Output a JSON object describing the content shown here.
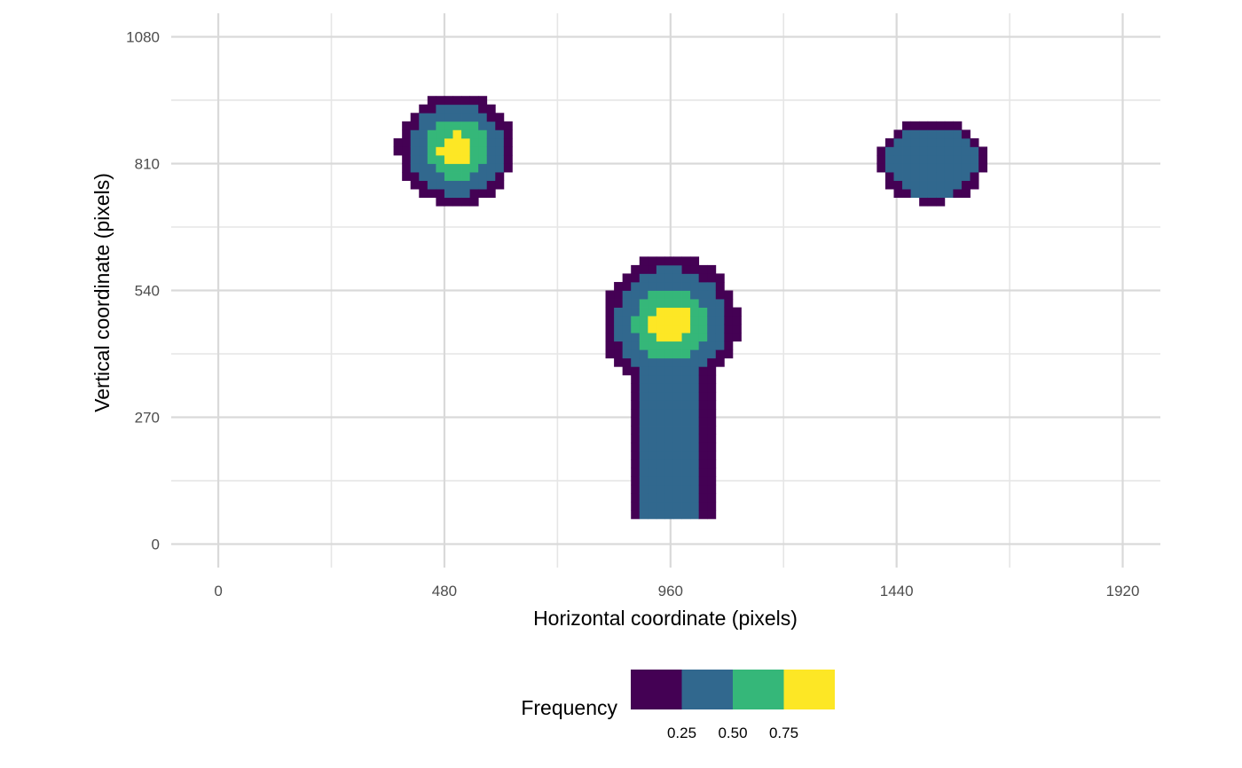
{
  "chart_data": {
    "type": "heatmap",
    "xlabel": "Horizontal coordinate (pixels)",
    "ylabel": "Vertical coordinate (pixels)",
    "xlim": [
      -100,
      2000
    ],
    "ylim": [
      -50,
      1130
    ],
    "x_ticks": [
      0,
      480,
      960,
      1440,
      1920
    ],
    "x_tick_labels": [
      "0",
      "480",
      "960",
      "1440",
      "1920"
    ],
    "y_ticks": [
      0,
      270,
      540,
      810,
      1080
    ],
    "y_tick_labels": [
      "0",
      "270",
      "540",
      "810",
      "1080"
    ],
    "grid": true,
    "bin_size": 18,
    "legend": {
      "title": "Frequency",
      "position": "bottom",
      "breaks": [
        "0.25",
        "0.50",
        "0.75"
      ],
      "colors": [
        "#440154",
        "#31688E",
        "#35B779",
        "#FDE725"
      ]
    },
    "blobs": [
      {
        "name": "top-left",
        "cx": 505,
        "cy": 840,
        "rx": 125,
        "ry": 120,
        "peak": 1.0
      },
      {
        "name": "top-right",
        "cx": 1515,
        "cy": 815,
        "rx": 115,
        "ry": 90,
        "peak": 0.45
      },
      {
        "name": "center",
        "cx": 960,
        "cy": 470,
        "rx": 145,
        "ry": 145,
        "peak": 1.0
      },
      {
        "name": "center-stem",
        "x": [
          870,
          1050
        ],
        "y": [
          60,
          480
        ],
        "level": 0.35
      }
    ]
  }
}
